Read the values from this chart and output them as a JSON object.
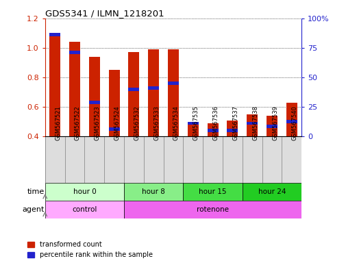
{
  "title": "GDS5341 / ILMN_1218201",
  "samples": [
    "GSM567521",
    "GSM567522",
    "GSM567523",
    "GSM567524",
    "GSM567532",
    "GSM567533",
    "GSM567534",
    "GSM567535",
    "GSM567536",
    "GSM567537",
    "GSM567538",
    "GSM567539",
    "GSM567540"
  ],
  "red_values": [
    1.1,
    1.04,
    0.94,
    0.85,
    0.97,
    0.99,
    0.99,
    0.49,
    0.49,
    0.51,
    0.55,
    0.54,
    0.63
  ],
  "blue_values": [
    1.09,
    0.97,
    0.63,
    0.45,
    0.72,
    0.73,
    0.76,
    0.49,
    0.44,
    0.44,
    0.49,
    0.47,
    0.5
  ],
  "ylim_left": [
    0.4,
    1.2
  ],
  "ylim_right": [
    0,
    100
  ],
  "yticks_left": [
    0.4,
    0.6,
    0.8,
    1.0,
    1.2
  ],
  "yticks_right": [
    0,
    25,
    50,
    75,
    100
  ],
  "ytick_labels_right": [
    "0",
    "25",
    "50",
    "75",
    "100%"
  ],
  "bar_color": "#CC2200",
  "blue_color": "#2222CC",
  "bar_width": 0.55,
  "time_groups": [
    {
      "label": "hour 0",
      "start": 0,
      "end": 4,
      "color": "#CCFFCC"
    },
    {
      "label": "hour 8",
      "start": 4,
      "end": 7,
      "color": "#88EE88"
    },
    {
      "label": "hour 15",
      "start": 7,
      "end": 10,
      "color": "#44DD44"
    },
    {
      "label": "hour 24",
      "start": 10,
      "end": 13,
      "color": "#22CC22"
    }
  ],
  "agent_groups": [
    {
      "label": "control",
      "start": 0,
      "end": 4,
      "color": "#FFAAFF"
    },
    {
      "label": "rotenone",
      "start": 4,
      "end": 13,
      "color": "#EE66EE"
    }
  ],
  "legend_red": "transformed count",
  "legend_blue": "percentile rank within the sample",
  "background_color": "#FFFFFF",
  "tick_label_color_left": "#CC2200",
  "tick_label_color_right": "#2222CC",
  "sample_bg_color": "#DDDDDD",
  "sample_border_color": "#888888"
}
